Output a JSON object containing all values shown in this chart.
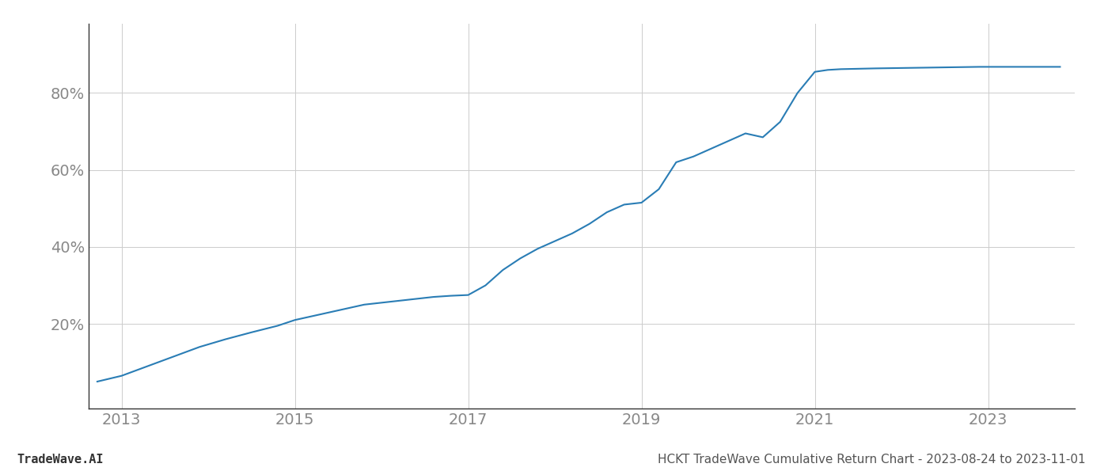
{
  "title": "HCKT TradeWave Cumulative Return Chart - 2023-08-24 to 2023-11-01",
  "watermark": "TradeWave.AI",
  "line_color": "#2a7db5",
  "line_width": 1.5,
  "background_color": "#ffffff",
  "grid_color": "#cccccc",
  "x_years": [
    2013,
    2015,
    2017,
    2019,
    2021,
    2023
  ],
  "x_min": 2012.62,
  "x_max": 2024.0,
  "y_ticks": [
    20,
    40,
    60,
    80
  ],
  "y_min": -2,
  "y_max": 98,
  "tick_label_color": "#888888",
  "tick_fontsize": 14,
  "spine_color": "#333333",
  "footer_fontsize": 11,
  "data_x": [
    2012.72,
    2013.0,
    2013.3,
    2013.6,
    2013.9,
    2014.2,
    2014.5,
    2014.8,
    2015.0,
    2015.2,
    2015.4,
    2015.6,
    2015.8,
    2016.0,
    2016.2,
    2016.4,
    2016.6,
    2016.8,
    2017.0,
    2017.2,
    2017.4,
    2017.6,
    2017.8,
    2018.0,
    2018.2,
    2018.4,
    2018.6,
    2018.8,
    2019.0,
    2019.2,
    2019.4,
    2019.6,
    2019.8,
    2020.0,
    2020.2,
    2020.4,
    2020.6,
    2020.8,
    2021.0,
    2021.15,
    2021.3,
    2021.5,
    2021.7,
    2022.0,
    2022.3,
    2022.6,
    2022.9,
    2023.0,
    2023.3,
    2023.6,
    2023.83
  ],
  "data_y": [
    5.0,
    6.5,
    9.0,
    11.5,
    14.0,
    16.0,
    17.8,
    19.5,
    21.0,
    22.0,
    23.0,
    24.0,
    25.0,
    25.5,
    26.0,
    26.5,
    27.0,
    27.3,
    27.5,
    30.0,
    34.0,
    37.0,
    39.5,
    41.5,
    43.5,
    46.0,
    49.0,
    51.0,
    51.5,
    55.0,
    62.0,
    63.5,
    65.5,
    67.5,
    69.5,
    68.5,
    72.5,
    80.0,
    85.5,
    86.0,
    86.2,
    86.3,
    86.4,
    86.5,
    86.6,
    86.7,
    86.8,
    86.8,
    86.8,
    86.8,
    86.8
  ]
}
